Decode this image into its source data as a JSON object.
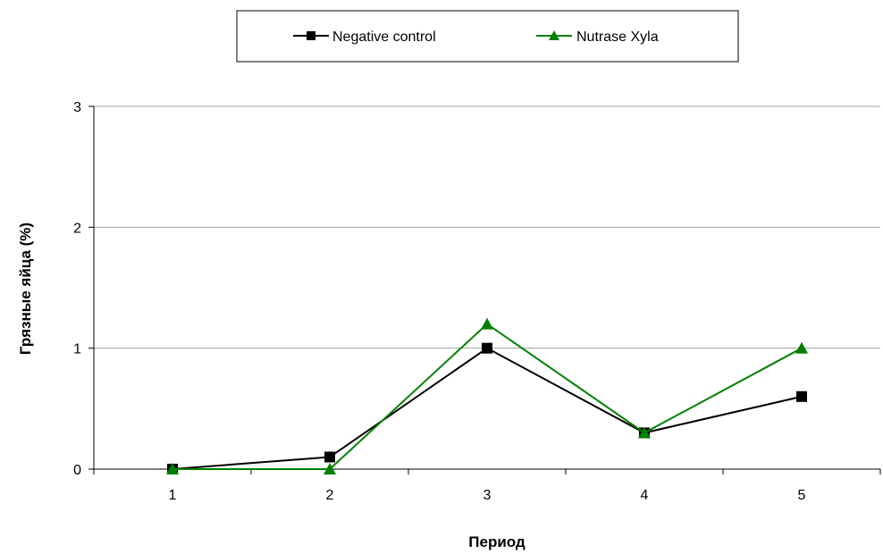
{
  "chart_data": {
    "type": "line",
    "categories": [
      "1",
      "2",
      "3",
      "4",
      "5"
    ],
    "series": [
      {
        "name": "Negative control",
        "values": [
          0,
          0.1,
          1.0,
          0.3,
          0.6
        ],
        "color": "#000000",
        "marker": "square"
      },
      {
        "name": "Nutrase Xyla",
        "values": [
          0,
          0,
          1.2,
          0.3,
          1.0
        ],
        "color": "#008000",
        "marker": "triangle"
      }
    ],
    "xlabel": "Период",
    "ylabel": "Грязные яйца (%)",
    "ylim": [
      0,
      3
    ],
    "yticks": [
      "0",
      "1",
      "2",
      "3"
    ],
    "grid": "horizontal",
    "legend_position": "top"
  }
}
